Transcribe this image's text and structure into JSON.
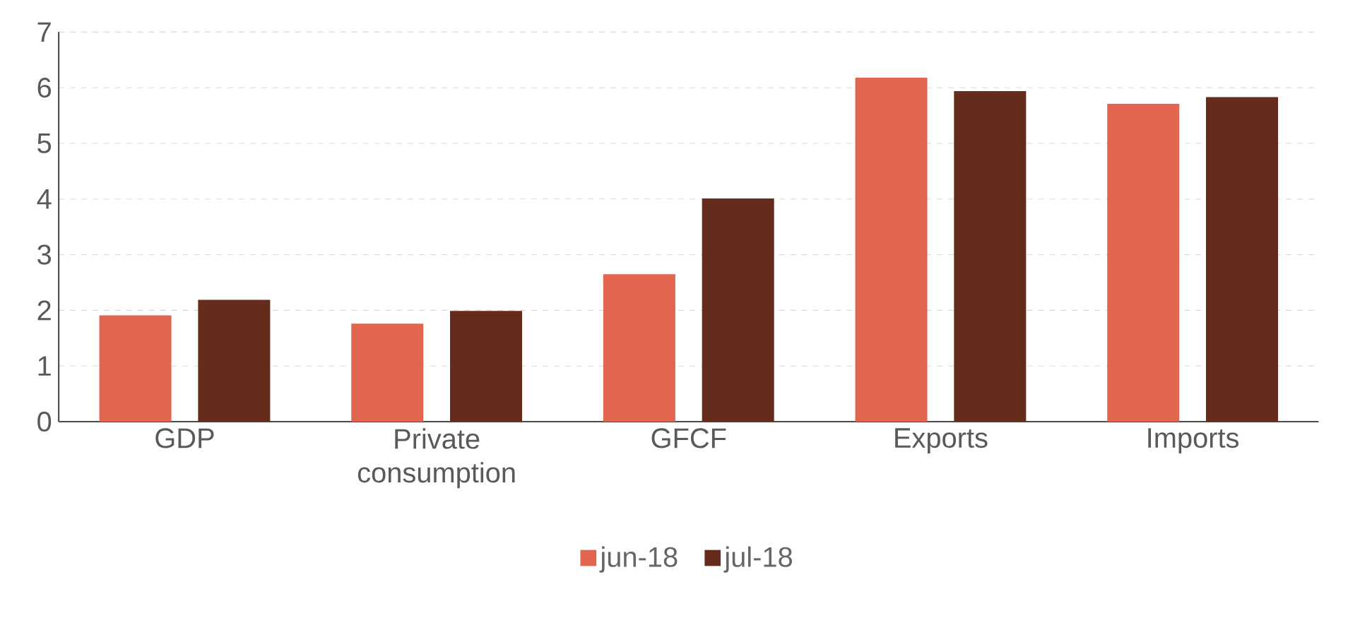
{
  "chart_data": {
    "type": "bar",
    "categories": [
      "GDP",
      "Private consumption",
      "GFCF",
      "Exports",
      "Imports"
    ],
    "series": [
      {
        "name": "jun-18",
        "color": "#e2664f",
        "values": [
          1.91,
          1.76,
          2.65,
          6.18,
          5.71
        ]
      },
      {
        "name": "jul-18",
        "color": "#652b1b",
        "values": [
          2.19,
          1.99,
          4.01,
          5.94,
          5.83
        ]
      }
    ],
    "ylim": [
      0,
      7
    ],
    "yticks": [
      0,
      1,
      2,
      3,
      4,
      5,
      6,
      7
    ],
    "grid": "y",
    "legend": "bottom"
  }
}
